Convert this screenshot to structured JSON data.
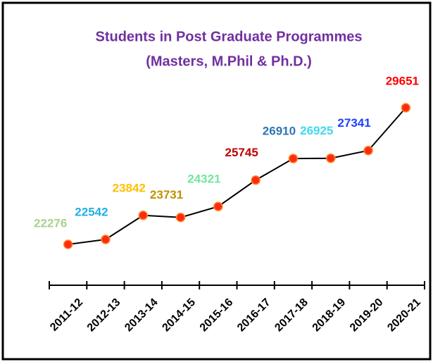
{
  "chart_data": {
    "type": "line",
    "title": "Students in Post Graduate Programmes",
    "subtitle": "(Masters, M.Phil & Ph.D.)",
    "title_color": "#7030a0",
    "categories": [
      "2011-12",
      "2012-13",
      "2013-14",
      "2014-15",
      "2015-16",
      "2016-17",
      "2017-18",
      "2018-19",
      "2019-20",
      "2020-21"
    ],
    "values": [
      22276,
      22542,
      23842,
      23731,
      24321,
      25745,
      26910,
      26925,
      27341,
      29651
    ],
    "color": "#000000",
    "marker_color": "#ff2a1a",
    "label_colors": [
      "#a9d18e",
      "#1fb0e6",
      "#ffc000",
      "#bf9000",
      "#6fe89a",
      "#c00000",
      "#2e75b6",
      "#3fd9f0",
      "#1f3fff",
      "#ff0000"
    ]
  }
}
